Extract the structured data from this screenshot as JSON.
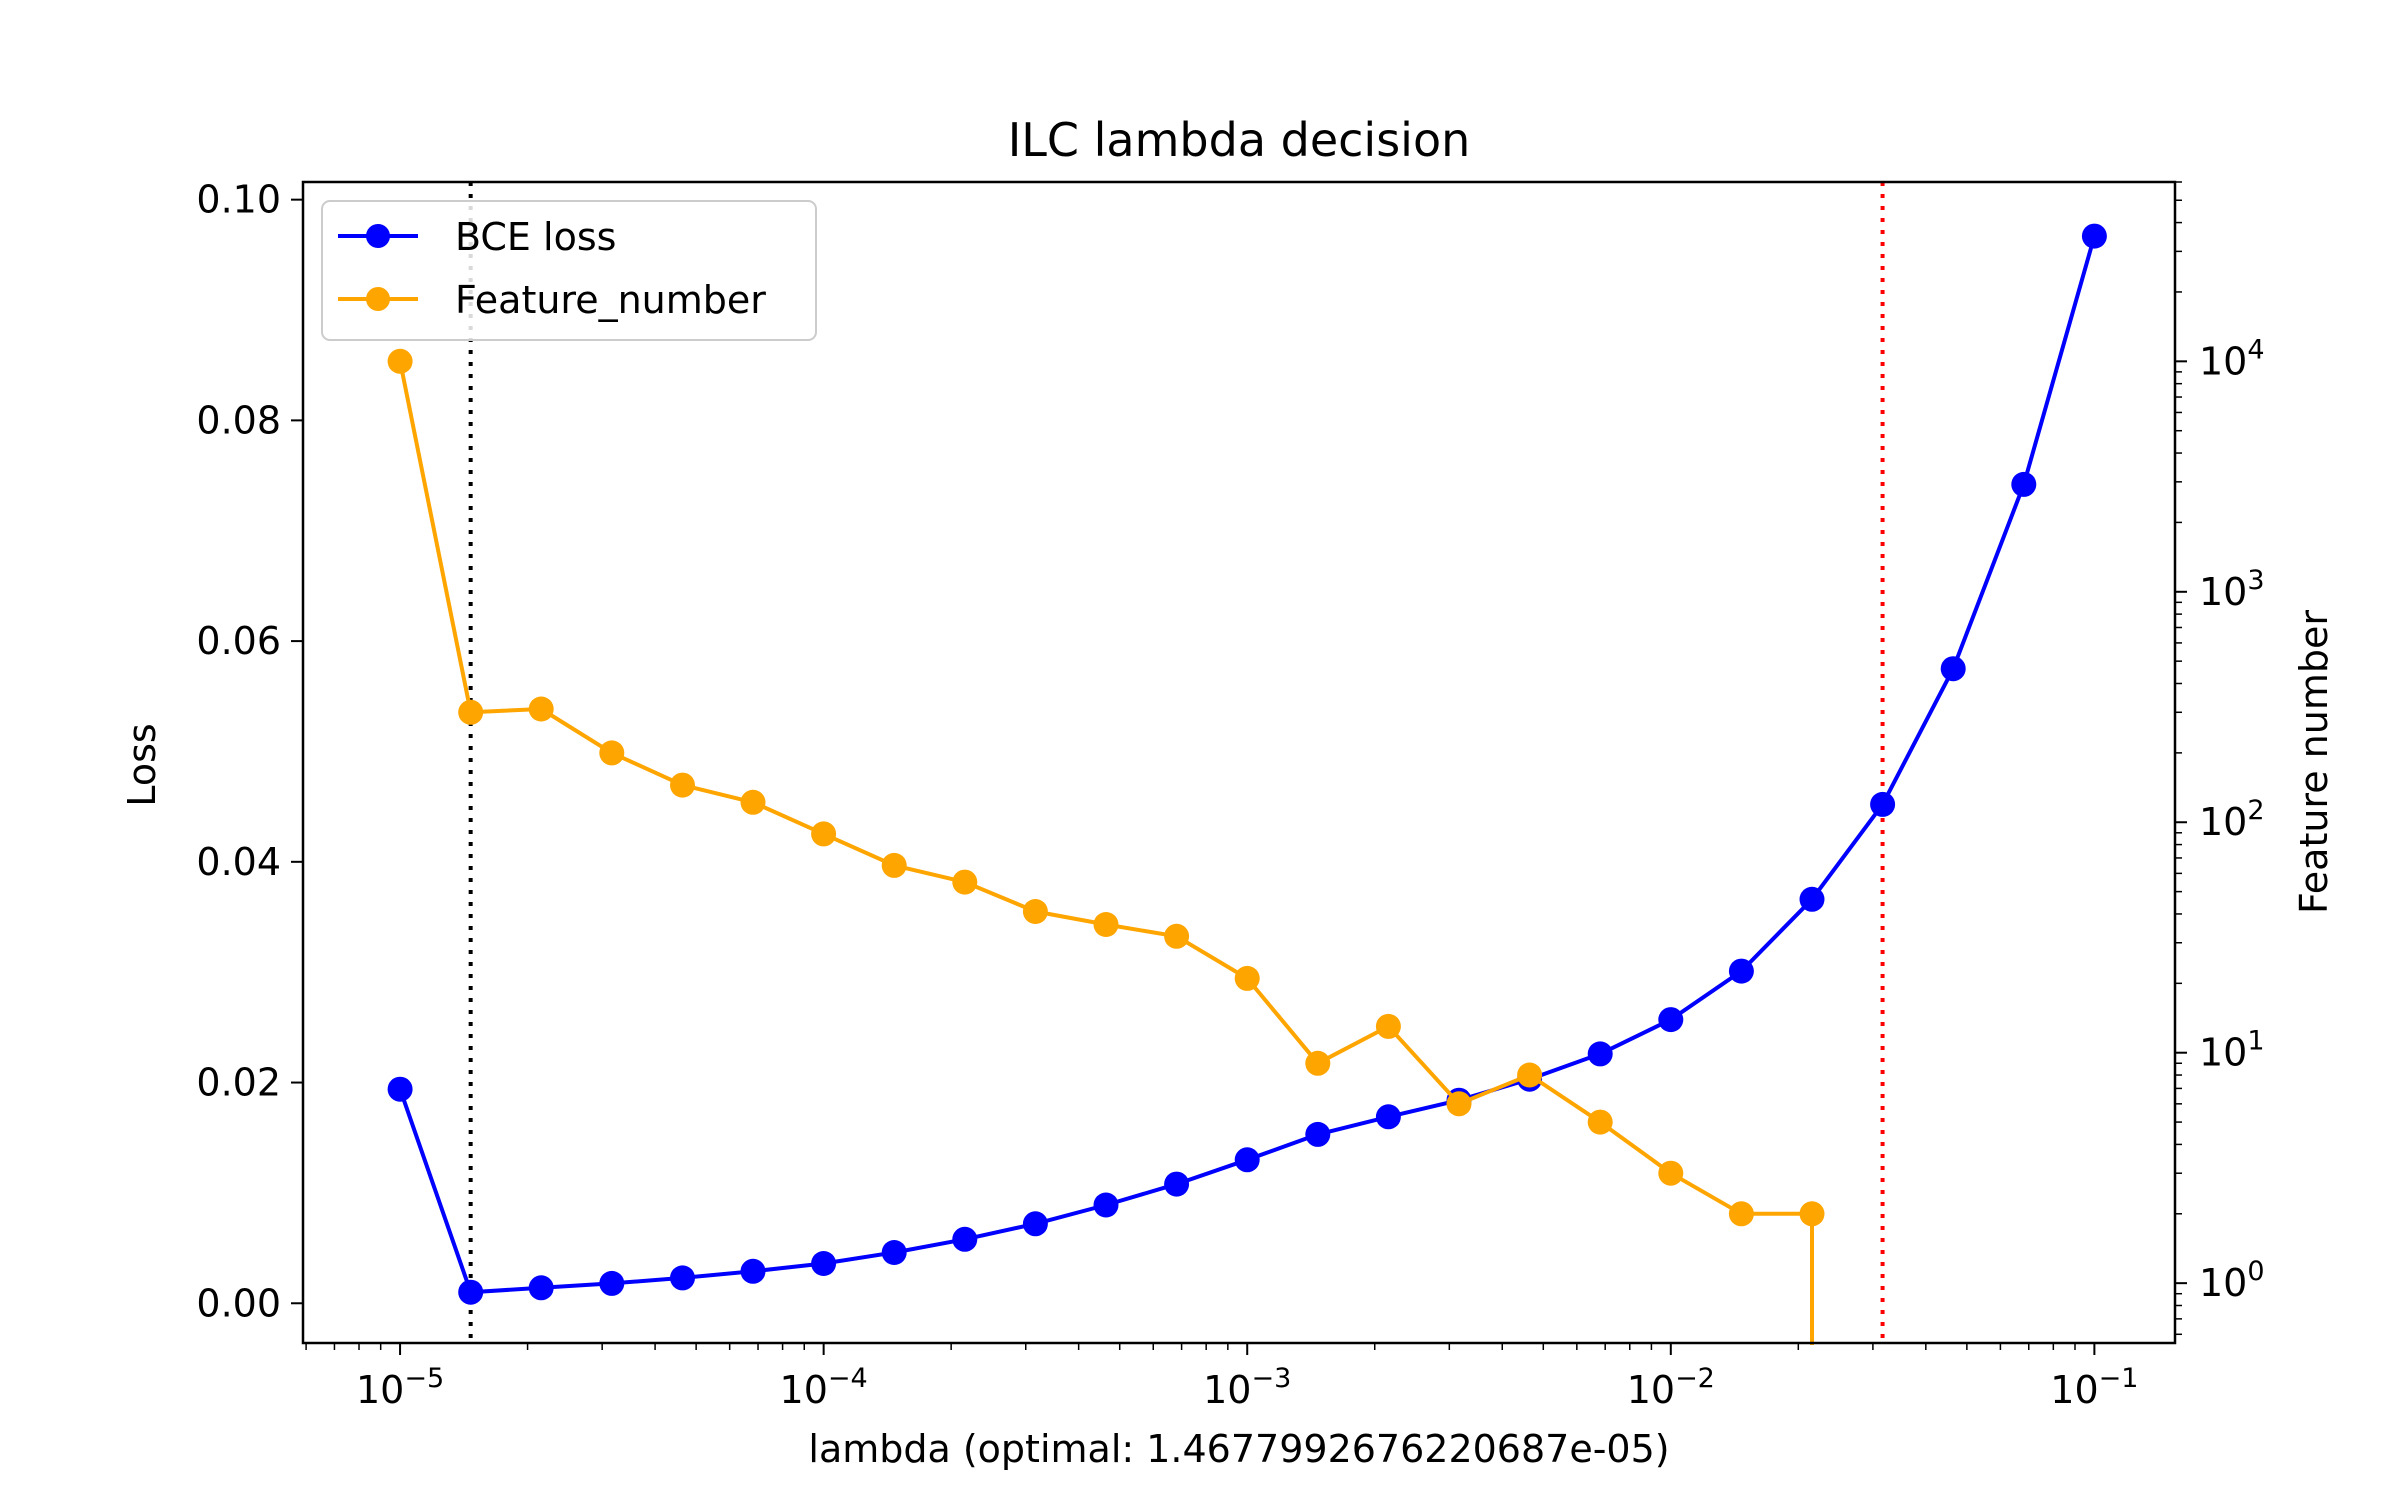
{
  "chart_data": {
    "type": "line",
    "title": "ILC lambda decision",
    "xlabel": "lambda (optimal: 1.4677992676220687e-05)",
    "ylabel": "Loss",
    "y2label": "Feature number",
    "xscale": "log",
    "y2scale": "log",
    "xlim": [
      5.9e-06,
      0.155
    ],
    "ylim": [
      -0.0036,
      0.1016
    ],
    "y2lim": [
      0.55,
      60000
    ],
    "x": [
      1e-05,
      1.4678e-05,
      2.154e-05,
      3.162e-05,
      4.642e-05,
      6.813e-05,
      0.0001,
      0.00014678,
      0.0002154,
      0.0003162,
      0.0004642,
      0.0006813,
      0.001,
      0.0014678,
      0.002154,
      0.003162,
      0.004642,
      0.006813,
      0.01,
      0.014678,
      0.02154,
      0.03162,
      0.04642,
      0.06813,
      0.1
    ],
    "series": [
      {
        "name": "BCE loss",
        "axis": "left",
        "color": "#0000ff",
        "values": [
          0.0194,
          0.001,
          0.0014,
          0.0018,
          0.0023,
          0.0029,
          0.0036,
          0.0046,
          0.0058,
          0.0072,
          0.0089,
          0.0108,
          0.013,
          0.0153,
          0.0169,
          0.0184,
          0.0203,
          0.0226,
          0.0257,
          0.0301,
          0.0366,
          0.0452,
          0.0575,
          0.0742,
          0.0967
        ]
      },
      {
        "name": "Feature_number",
        "axis": "right",
        "color": "#ffa500",
        "values": [
          10000,
          300,
          310,
          200,
          145,
          122,
          89,
          65,
          55,
          41,
          36,
          32,
          21,
          9,
          13,
          6,
          8,
          5,
          3,
          2,
          2,
          0,
          null,
          null,
          null
        ]
      }
    ],
    "vlines": [
      {
        "x": 1.4678e-05,
        "color": "#000000",
        "style": "dotted"
      },
      {
        "x": 0.03162,
        "color": "#ff0000",
        "style": "dotted"
      }
    ],
    "xticks": [
      {
        "value": 1e-05,
        "base": "10",
        "exp": "−5"
      },
      {
        "value": 0.0001,
        "base": "10",
        "exp": "−4"
      },
      {
        "value": 0.001,
        "base": "10",
        "exp": "−3"
      },
      {
        "value": 0.01,
        "base": "10",
        "exp": "−2"
      },
      {
        "value": 0.1,
        "base": "10",
        "exp": "−1"
      }
    ],
    "yticks": [
      {
        "value": 0.0,
        "label": "0.00"
      },
      {
        "value": 0.02,
        "label": "0.02"
      },
      {
        "value": 0.04,
        "label": "0.04"
      },
      {
        "value": 0.06,
        "label": "0.06"
      },
      {
        "value": 0.08,
        "label": "0.08"
      },
      {
        "value": 0.1,
        "label": "0.10"
      }
    ],
    "y2ticks": [
      {
        "value": 1,
        "base": "10",
        "exp": "0"
      },
      {
        "value": 10,
        "base": "10",
        "exp": "1"
      },
      {
        "value": 100,
        "base": "10",
        "exp": "2"
      },
      {
        "value": 1000,
        "base": "10",
        "exp": "3"
      },
      {
        "value": 10000,
        "base": "10",
        "exp": "4"
      }
    ],
    "legend_position": "upper-left",
    "grid": false
  }
}
